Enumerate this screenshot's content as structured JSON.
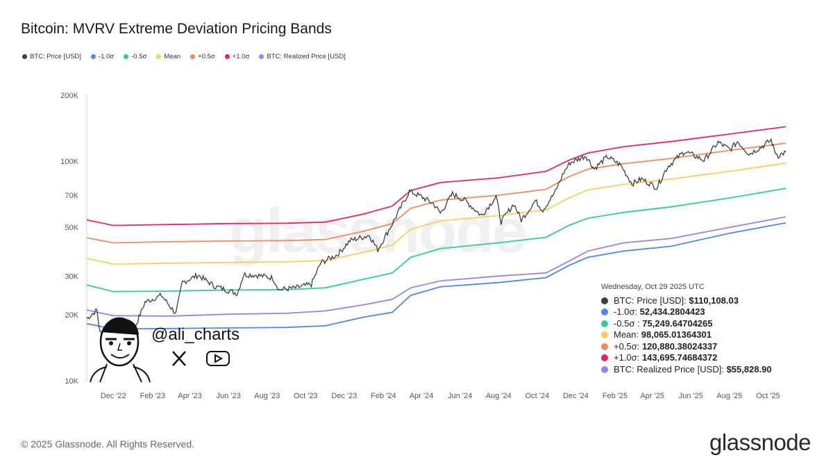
{
  "title": "Bitcoin: MVRV Extreme Deviation Pricing Bands",
  "legend": [
    {
      "label": "BTC: Price [USD]",
      "color": "#3d3d3d"
    },
    {
      "label": "-1.0σ",
      "color": "#4f86e8"
    },
    {
      "label": "-0.5σ",
      "color": "#2fcc9b"
    },
    {
      "label": "Mean",
      "color": "#f7cf5e"
    },
    {
      "label": "+0.5σ",
      "color": "#f18a5e"
    },
    {
      "label": "+1.0σ",
      "color": "#e8255a"
    },
    {
      "label": "BTC: Realized Price [USD]",
      "color": "#9b7ef0"
    }
  ],
  "tooltip": {
    "date": "Wednesday, Oct 29 2025 UTC",
    "rows": [
      {
        "label": "BTC: Price [USD]:",
        "value": "$110,108.03",
        "color": "#3d3d3d"
      },
      {
        "label": "-1.0σ:",
        "value": "52,434.2804423",
        "color": "#4f86e8"
      },
      {
        "label": "-0.5σ :",
        "value": "75,249.64704265",
        "color": "#2fcc9b"
      },
      {
        "label": "Mean:",
        "value": "98,065.01364301",
        "color": "#f7cf5e"
      },
      {
        "label": "+0.5σ:",
        "value": "120,880.38024337",
        "color": "#f18a5e"
      },
      {
        "label": "+1.0σ:",
        "value": "143,695.74684372",
        "color": "#e8255a"
      },
      {
        "label": "BTC: Realized Price [USD]:",
        "value": "$55,828.90",
        "color": "#9b7ef0"
      }
    ]
  },
  "watermark": "glassnode",
  "author": {
    "handle": "@ali_charts",
    "icons": [
      "x-logo-icon",
      "youtube-icon"
    ]
  },
  "footer": "© 2025 Glassnode. All Rights Reserved.",
  "logo": "glassnode",
  "chart_data": {
    "type": "line",
    "title": "Bitcoin: MVRV Extreme Deviation Pricing Bands",
    "yscale": "log",
    "ylim": [
      10000,
      200000
    ],
    "yticks": [
      {
        "v": 10000,
        "label": "10K"
      },
      {
        "v": 20000,
        "label": "20K"
      },
      {
        "v": 30000,
        "label": "30K"
      },
      {
        "v": 50000,
        "label": "50K"
      },
      {
        "v": 70000,
        "label": "70K"
      },
      {
        "v": 100000,
        "label": "100K"
      },
      {
        "v": 200000,
        "label": "200K"
      }
    ],
    "xlim": [
      "2022-10-20",
      "2025-10-29"
    ],
    "xticks": [
      {
        "d": "2022-12-01",
        "label": "Dec '22"
      },
      {
        "d": "2023-02-01",
        "label": "Feb '23"
      },
      {
        "d": "2023-04-01",
        "label": "Apr '23"
      },
      {
        "d": "2023-06-01",
        "label": "Jun '23"
      },
      {
        "d": "2023-08-01",
        "label": "Aug '23"
      },
      {
        "d": "2023-10-01",
        "label": "Oct '23"
      },
      {
        "d": "2023-12-01",
        "label": "Dec '23"
      },
      {
        "d": "2024-02-01",
        "label": "Feb '24"
      },
      {
        "d": "2024-04-01",
        "label": "Apr '24"
      },
      {
        "d": "2024-06-01",
        "label": "Jun '24"
      },
      {
        "d": "2024-08-01",
        "label": "Aug '24"
      },
      {
        "d": "2024-10-01",
        "label": "Oct '24"
      },
      {
        "d": "2024-12-01",
        "label": "Dec '24"
      },
      {
        "d": "2025-02-01",
        "label": "Feb '25"
      },
      {
        "d": "2025-04-01",
        "label": "Apr '25"
      },
      {
        "d": "2025-06-01",
        "label": "Jun '25"
      },
      {
        "d": "2025-08-01",
        "label": "Aug '25"
      },
      {
        "d": "2025-10-01",
        "label": "Oct '25"
      }
    ],
    "grid": false,
    "legend_position": "top-left",
    "band_dates": [
      "2022-10-20",
      "2022-12-01",
      "2023-03-01",
      "2023-06-01",
      "2023-09-01",
      "2023-11-01",
      "2024-01-01",
      "2024-02-15",
      "2024-03-15",
      "2024-05-01",
      "2024-08-01",
      "2024-10-15",
      "2024-11-20",
      "2024-12-20",
      "2025-02-15",
      "2025-05-01",
      "2025-08-01",
      "2025-10-29"
    ],
    "series": [
      {
        "name": "+1.0σ",
        "color": "#e8255a",
        "values": [
          54000,
          51000,
          51500,
          52000,
          52200,
          52800,
          57500,
          62500,
          73500,
          80000,
          84000,
          90000,
          101000,
          109000,
          116500,
          123000,
          133000,
          143696
        ]
      },
      {
        "name": "+0.5σ",
        "color": "#f18a5e",
        "values": [
          44800,
          42500,
          43000,
          43300,
          43500,
          44000,
          48000,
          52000,
          61000,
          66500,
          70000,
          74500,
          85000,
          92000,
          97500,
          103000,
          112000,
          120880
        ]
      },
      {
        "name": "Mean",
        "color": "#f7cf5e",
        "values": [
          36100,
          34000,
          34300,
          34600,
          34800,
          35300,
          38500,
          41500,
          49000,
          53500,
          56500,
          60000,
          68000,
          74000,
          78500,
          83000,
          90000,
          98065
        ]
      },
      {
        "name": "-0.5σ",
        "color": "#2fcc9b",
        "values": [
          27300,
          25500,
          25600,
          25900,
          26000,
          26500,
          29000,
          31000,
          36500,
          40000,
          42500,
          45000,
          51000,
          55000,
          58500,
          62000,
          68000,
          75250
        ]
      },
      {
        "name": "BTC: Realized Price [USD]",
        "color": "#9b7ef0",
        "values": [
          21000,
          19800,
          19700,
          20100,
          20300,
          20800,
          22200,
          23500,
          26500,
          28500,
          30000,
          31000,
          35000,
          39000,
          42500,
          44500,
          50000,
          55829
        ]
      },
      {
        "name": "-1.0σ",
        "color": "#4f86e8",
        "values": [
          18200,
          17200,
          17300,
          17400,
          17500,
          17800,
          19500,
          20500,
          24500,
          26800,
          28000,
          29500,
          33500,
          36500,
          39000,
          41000,
          47000,
          52434
        ]
      }
    ],
    "price": {
      "name": "BTC: Price [USD]",
      "color": "#3d3d3d",
      "dates": [
        "2022-10-20",
        "2022-11-05",
        "2022-11-10",
        "2022-11-25",
        "2022-12-15",
        "2023-01-01",
        "2023-01-20",
        "2023-02-15",
        "2023-03-10",
        "2023-03-20",
        "2023-04-14",
        "2023-05-10",
        "2023-06-15",
        "2023-06-25",
        "2023-07-15",
        "2023-08-10",
        "2023-08-20",
        "2023-09-15",
        "2023-10-10",
        "2023-10-25",
        "2023-11-20",
        "2023-12-10",
        "2024-01-10",
        "2024-01-23",
        "2024-02-15",
        "2024-03-13",
        "2024-04-01",
        "2024-04-20",
        "2024-05-01",
        "2024-05-20",
        "2024-06-10",
        "2024-07-05",
        "2024-07-28",
        "2024-08-05",
        "2024-08-25",
        "2024-09-06",
        "2024-09-28",
        "2024-10-10",
        "2024-10-29",
        "2024-11-12",
        "2024-11-22",
        "2024-12-17",
        "2024-12-30",
        "2025-01-20",
        "2025-02-10",
        "2025-02-28",
        "2025-03-15",
        "2025-04-08",
        "2025-04-25",
        "2025-05-22",
        "2025-06-22",
        "2025-07-14",
        "2025-08-02",
        "2025-08-14",
        "2025-09-01",
        "2025-09-20",
        "2025-10-06",
        "2025-10-11",
        "2025-10-17",
        "2025-10-29"
      ],
      "values": [
        19200,
        21000,
        16500,
        16500,
        16800,
        16600,
        22800,
        24500,
        20200,
        28000,
        30300,
        27000,
        25000,
        30500,
        30300,
        29400,
        26000,
        26500,
        27500,
        34500,
        37500,
        43500,
        46000,
        39500,
        52000,
        73000,
        69000,
        64000,
        58000,
        71000,
        66000,
        56500,
        69000,
        53000,
        64000,
        54000,
        66000,
        60000,
        72000,
        89000,
        98500,
        106000,
        92500,
        105000,
        96000,
        79000,
        83000,
        76000,
        94500,
        111000,
        101000,
        122000,
        113000,
        123000,
        108000,
        116000,
        125000,
        112000,
        106000,
        110108
      ]
    }
  }
}
